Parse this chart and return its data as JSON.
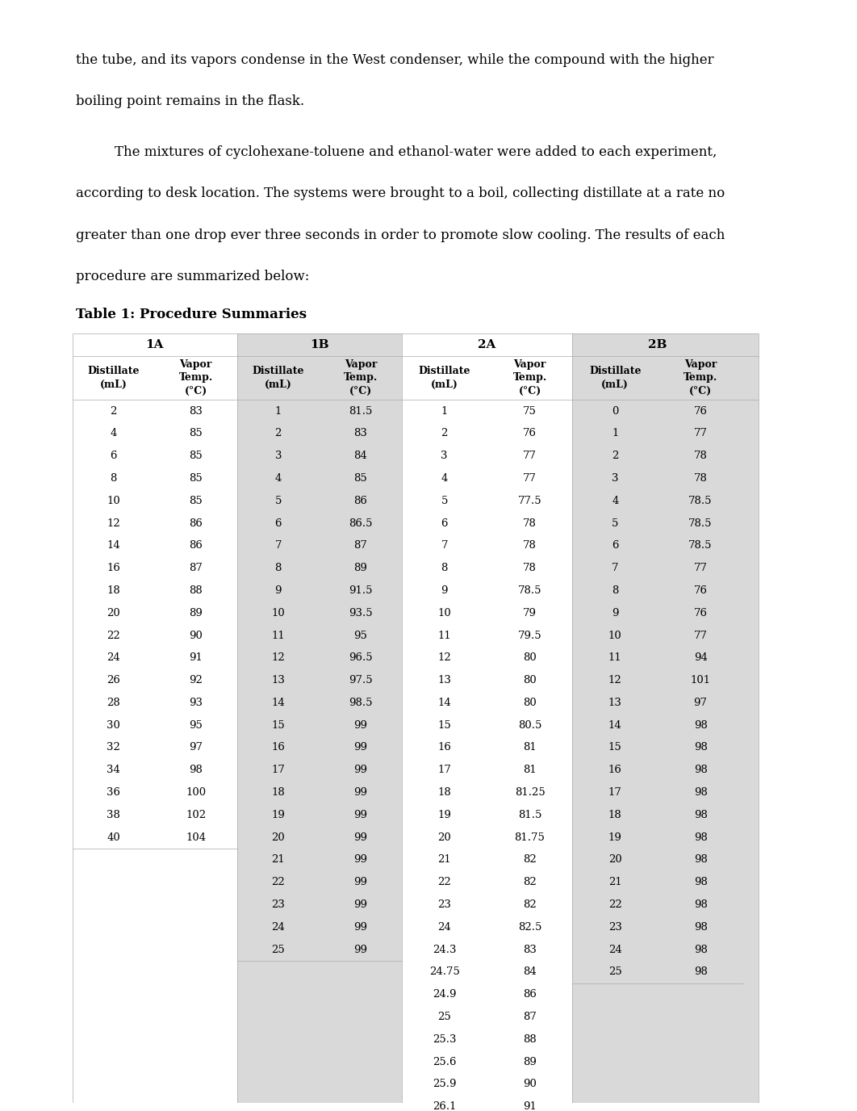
{
  "paragraph1": "the tube, and its vapors condense in the West condenser, while the compound with the higher",
  "paragraph2": "boiling point remains in the flask.",
  "paragraph3": "The mixtures of cyclohexane-toluene and ethanol-water were added to each experiment,",
  "paragraph4": "according to desk location. The systems were brought to a boil, collecting distillate at a rate no",
  "paragraph5": "greater than one drop ever three seconds in order to promote slow cooling. The results of each",
  "paragraph6": "procedure are summarized below:",
  "table_title": "Table 1: Procedure Summaries",
  "groups": [
    "1A",
    "1B",
    "2A",
    "2B"
  ],
  "col_headers": [
    "Distillate\n(mL)",
    "Vapor\nTemp.\n(°C)",
    "Distillate\n(mL)",
    "Vapor\nTemp.\n(°C)",
    "Distillate\n(mL)",
    "Vapor\nTemp.\n(°C)",
    "Distillate\n(mL)",
    "Vapor\nTemp.\n(°C)"
  ],
  "data_1A": [
    [
      2,
      83
    ],
    [
      4,
      85
    ],
    [
      6,
      85
    ],
    [
      8,
      85
    ],
    [
      10,
      85
    ],
    [
      12,
      86
    ],
    [
      14,
      86
    ],
    [
      16,
      87
    ],
    [
      18,
      88
    ],
    [
      20,
      89
    ],
    [
      22,
      90
    ],
    [
      24,
      91
    ],
    [
      26,
      92
    ],
    [
      28,
      93
    ],
    [
      30,
      95
    ],
    [
      32,
      97
    ],
    [
      34,
      98
    ],
    [
      36,
      100
    ],
    [
      38,
      102
    ],
    [
      40,
      104
    ]
  ],
  "data_1B": [
    [
      1,
      81.5
    ],
    [
      2,
      83
    ],
    [
      3,
      84
    ],
    [
      4,
      85
    ],
    [
      5,
      86
    ],
    [
      6,
      86.5
    ],
    [
      7,
      87
    ],
    [
      8,
      89
    ],
    [
      9,
      91.5
    ],
    [
      10,
      93.5
    ],
    [
      11,
      95
    ],
    [
      12,
      96.5
    ],
    [
      13,
      97.5
    ],
    [
      14,
      98.5
    ],
    [
      15,
      99
    ],
    [
      16,
      99
    ],
    [
      17,
      99
    ],
    [
      18,
      99
    ],
    [
      19,
      99
    ],
    [
      20,
      99
    ],
    [
      21,
      99
    ],
    [
      22,
      99
    ],
    [
      23,
      99
    ],
    [
      24,
      99
    ],
    [
      25,
      99
    ]
  ],
  "data_2A": [
    [
      1,
      75
    ],
    [
      2,
      76
    ],
    [
      3,
      77
    ],
    [
      4,
      77
    ],
    [
      5,
      77.5
    ],
    [
      6,
      78
    ],
    [
      7,
      78
    ],
    [
      8,
      78
    ],
    [
      9,
      78.5
    ],
    [
      10,
      79
    ],
    [
      11,
      79.5
    ],
    [
      12,
      80
    ],
    [
      13,
      80
    ],
    [
      14,
      80
    ],
    [
      15,
      80.5
    ],
    [
      16,
      81
    ],
    [
      17,
      81
    ],
    [
      18,
      81.25
    ],
    [
      19,
      81.5
    ],
    [
      20,
      81.75
    ],
    [
      21,
      82
    ],
    [
      22,
      82
    ],
    [
      23,
      82
    ],
    [
      24,
      82.5
    ],
    [
      24.3,
      83
    ],
    [
      24.75,
      84
    ],
    [
      24.9,
      86
    ],
    [
      25,
      87
    ],
    [
      25.3,
      88
    ],
    [
      25.6,
      89
    ],
    [
      25.9,
      90
    ],
    [
      26.1,
      91
    ]
  ],
  "data_2B": [
    [
      0,
      76
    ],
    [
      1,
      77
    ],
    [
      2,
      78
    ],
    [
      3,
      78
    ],
    [
      4,
      78.5
    ],
    [
      5,
      78.5
    ],
    [
      6,
      78.5
    ],
    [
      7,
      77
    ],
    [
      8,
      76
    ],
    [
      9,
      76
    ],
    [
      10,
      77
    ],
    [
      11,
      94
    ],
    [
      12,
      101
    ],
    [
      13,
      97
    ],
    [
      14,
      98
    ],
    [
      15,
      98
    ],
    [
      16,
      98
    ],
    [
      17,
      98
    ],
    [
      18,
      98
    ],
    [
      19,
      98
    ],
    [
      20,
      98
    ],
    [
      21,
      98
    ],
    [
      22,
      98
    ],
    [
      23,
      98
    ],
    [
      24,
      98
    ],
    [
      25,
      98
    ]
  ],
  "bg_color": "#d9d9d9",
  "text_color": "#000000",
  "white": "#ffffff"
}
